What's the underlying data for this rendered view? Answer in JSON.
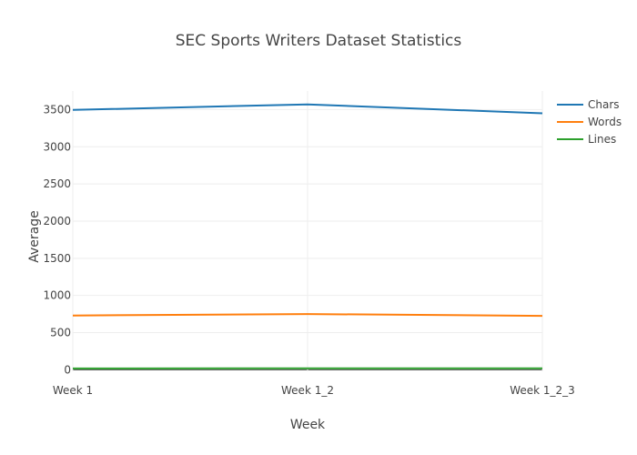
{
  "chart_data": {
    "type": "line",
    "title": "SEC Sports Writers Dataset Statistics",
    "xlabel": "Week",
    "ylabel": "Average",
    "categories": [
      "Week 1",
      "Week 1_2",
      "Week 1_2_3"
    ],
    "y_ticks": [
      "0",
      "500",
      "1000",
      "1500",
      "2000",
      "2500",
      "3000",
      "3500"
    ],
    "ylim": [
      -20,
      3750
    ],
    "grid": true,
    "legend_position": "top-right",
    "series": [
      {
        "name": "Chars",
        "color": "#1f77b4",
        "values": [
          3495,
          3570,
          3450
        ]
      },
      {
        "name": "Words",
        "color": "#ff7f0e",
        "values": [
          730,
          750,
          725
        ]
      },
      {
        "name": "Lines",
        "color": "#2ca02c",
        "values": [
          18,
          20,
          19
        ]
      }
    ]
  }
}
